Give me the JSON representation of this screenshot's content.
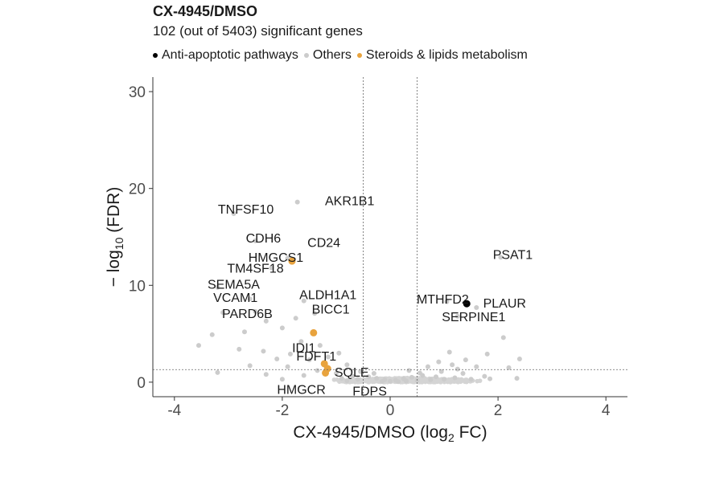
{
  "chart_data": {
    "type": "scatter",
    "title": "CX-4945/DMSO",
    "subtitle": "102 (out of 5403) significant genes",
    "xlabel": "CX-4945/DMSO (log2 FC)",
    "ylabel": "− log10 (FDR)",
    "xlim": [
      -4.4,
      4.4
    ],
    "ylim": [
      -1.5,
      31.5
    ],
    "xticks": [
      -4,
      -2,
      0,
      2,
      4
    ],
    "yticks": [
      0,
      10,
      20,
      30
    ],
    "grid": false,
    "legend_position": "top",
    "thresholds": {
      "x": [
        -0.5,
        0.5
      ],
      "y": 1.3
    },
    "colors": {
      "Anti-apoptotic pathways": "#000000",
      "Others": "#cccccc",
      "Steroids & lipids metabolism": "#e8a33d"
    },
    "series": [
      {
        "name": "Anti-apoptotic pathways",
        "points": [
          {
            "x": 1.42,
            "y": 8.1
          }
        ]
      },
      {
        "name": "Steroids & lipids metabolism",
        "points": [
          {
            "x": -1.82,
            "y": 12.5
          },
          {
            "x": -1.42,
            "y": 5.1
          },
          {
            "x": -1.22,
            "y": 1.9
          },
          {
            "x": -1.16,
            "y": 1.4
          },
          {
            "x": -1.2,
            "y": 0.95
          }
        ]
      },
      {
        "name": "Others",
        "points": [
          {
            "x": -2.9,
            "y": 17.4
          },
          {
            "x": -1.72,
            "y": 18.6
          },
          {
            "x": -2.5,
            "y": 14.6
          },
          {
            "x": -1.9,
            "y": 12.8
          },
          {
            "x": -2.2,
            "y": 11.8
          },
          {
            "x": -3.2,
            "y": 9.8
          },
          {
            "x": -2.6,
            "y": 8.6
          },
          {
            "x": -1.6,
            "y": 8.4
          },
          {
            "x": -3.1,
            "y": 7.2
          },
          {
            "x": -2.5,
            "y": 7.3
          },
          {
            "x": -2.3,
            "y": 6.3
          },
          {
            "x": -1.75,
            "y": 6.6
          },
          {
            "x": -1.4,
            "y": 7.1
          },
          {
            "x": -2.0,
            "y": 5.6
          },
          {
            "x": -3.3,
            "y": 4.9
          },
          {
            "x": -2.7,
            "y": 5.2
          },
          {
            "x": 2.05,
            "y": 12.9
          },
          {
            "x": 1.05,
            "y": 8.3
          },
          {
            "x": 1.6,
            "y": 7.7
          },
          {
            "x": 1.25,
            "y": 6.8
          },
          {
            "x": -3.55,
            "y": 3.8
          },
          {
            "x": -2.8,
            "y": 3.4
          },
          {
            "x": -2.35,
            "y": 3.2
          },
          {
            "x": -1.65,
            "y": 4.2
          },
          {
            "x": -1.3,
            "y": 3.8
          },
          {
            "x": -0.95,
            "y": 3.0
          },
          {
            "x": -2.1,
            "y": 2.4
          },
          {
            "x": -1.85,
            "y": 2.9
          },
          {
            "x": -1.5,
            "y": 2.3
          },
          {
            "x": -0.8,
            "y": 1.8
          },
          {
            "x": -2.6,
            "y": 1.7
          },
          {
            "x": -3.2,
            "y": 1.0
          },
          {
            "x": -2.3,
            "y": 0.8
          },
          {
            "x": -1.9,
            "y": 1.6
          },
          {
            "x": -1.35,
            "y": 1.2
          },
          {
            "x": -1.0,
            "y": 0.9
          },
          {
            "x": -0.7,
            "y": 0.6
          },
          {
            "x": -0.55,
            "y": 1.1
          },
          {
            "x": -1.6,
            "y": 0.7
          },
          {
            "x": -2.0,
            "y": 0.3
          },
          {
            "x": -0.9,
            "y": 0.4
          },
          {
            "x": -1.15,
            "y": 2.6
          },
          {
            "x": 2.1,
            "y": 4.6
          },
          {
            "x": 1.1,
            "y": 3.1
          },
          {
            "x": 1.8,
            "y": 2.9
          },
          {
            "x": 2.4,
            "y": 2.4
          },
          {
            "x": 1.4,
            "y": 2.3
          },
          {
            "x": 0.9,
            "y": 2.1
          },
          {
            "x": 1.15,
            "y": 1.8
          },
          {
            "x": 1.6,
            "y": 1.6
          },
          {
            "x": 2.2,
            "y": 1.5
          },
          {
            "x": 0.7,
            "y": 1.6
          },
          {
            "x": 0.95,
            "y": 1.1
          },
          {
            "x": 1.35,
            "y": 0.9
          },
          {
            "x": 1.75,
            "y": 0.6
          },
          {
            "x": 2.35,
            "y": 0.4
          },
          {
            "x": 0.6,
            "y": 0.7
          },
          {
            "x": 0.4,
            "y": 0.5
          },
          {
            "x": 0.25,
            "y": 0.35
          },
          {
            "x": 0.1,
            "y": 0.2
          },
          {
            "x": -0.1,
            "y": 0.25
          },
          {
            "x": -0.25,
            "y": 0.4
          },
          {
            "x": -0.4,
            "y": 0.55
          },
          {
            "x": 0.0,
            "y": 0.1
          },
          {
            "x": 0.15,
            "y": 0.05
          },
          {
            "x": -0.15,
            "y": 0.08
          },
          {
            "x": 0.3,
            "y": 0.12
          },
          {
            "x": 0.5,
            "y": 0.2
          },
          {
            "x": 0.75,
            "y": 0.25
          },
          {
            "x": 1.0,
            "y": 0.3
          },
          {
            "x": 1.2,
            "y": 0.45
          },
          {
            "x": 1.5,
            "y": 0.3
          },
          {
            "x": 1.85,
            "y": 0.35
          },
          {
            "x": 0.85,
            "y": 0.55
          },
          {
            "x": 0.55,
            "y": 0.95
          },
          {
            "x": 1.25,
            "y": 1.35
          },
          {
            "x": -0.3,
            "y": 0.9
          },
          {
            "x": -0.6,
            "y": 0.3
          },
          {
            "x": -0.8,
            "y": 0.15
          },
          {
            "x": 0.35,
            "y": 1.2
          }
        ]
      }
    ],
    "labels": [
      {
        "text": "AKR1B1",
        "x": -1.72,
        "y": 18.6
      },
      {
        "text": "TNFSF10",
        "x": -2.9,
        "y": 17.4
      },
      {
        "text": "CDH6",
        "x": -2.5,
        "y": 14.6
      },
      {
        "text": "HMGCS1",
        "x": -1.82,
        "y": 12.5
      },
      {
        "text": "TM4SF18",
        "x": -2.2,
        "y": 11.8
      },
      {
        "text": "CD24",
        "x": -1.9,
        "y": 12.8
      },
      {
        "text": "SEMA5A",
        "x": -3.2,
        "y": 9.8
      },
      {
        "text": "VCAM1",
        "x": -2.6,
        "y": 8.6
      },
      {
        "text": "ALDH1A1",
        "x": -1.6,
        "y": 8.4
      },
      {
        "text": "PARD6B",
        "x": -2.5,
        "y": 7.3
      },
      {
        "text": "BICC1",
        "x": -1.4,
        "y": 7.1
      },
      {
        "text": "IDI1",
        "x": -1.42,
        "y": 5.1
      },
      {
        "text": "FDFT1",
        "x": -1.22,
        "y": 1.9
      },
      {
        "text": "SQLE",
        "x": -1.16,
        "y": 1.4
      },
      {
        "text": "HMGCR",
        "x": -1.2,
        "y": 0.95
      },
      {
        "text": "FDPS",
        "x": -1.2,
        "y": 0.95
      },
      {
        "text": "PSAT1",
        "x": 2.05,
        "y": 12.9
      },
      {
        "text": "MTHFD2",
        "x": 1.05,
        "y": 8.3
      },
      {
        "text": "PLAUR",
        "x": 1.6,
        "y": 7.7
      },
      {
        "text": "SERPINE1",
        "x": 1.25,
        "y": 6.8
      }
    ]
  }
}
